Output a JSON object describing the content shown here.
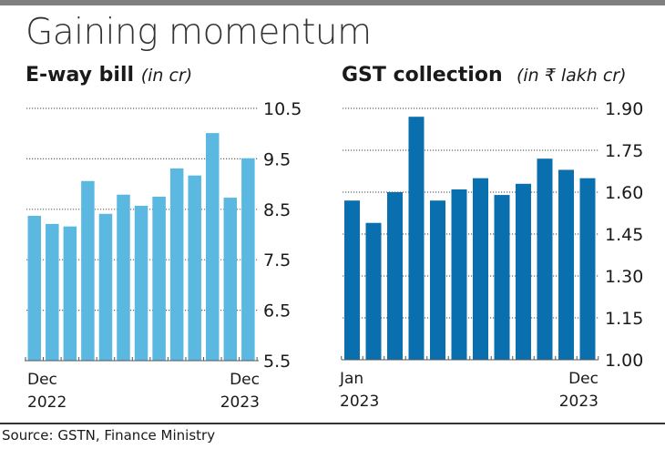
{
  "title": "Gaining momentum",
  "source": "Source: GSTN, Finance Ministry",
  "colors": {
    "eway": "#5bb8e1",
    "gst": "#0a6fae",
    "grid": "#666666",
    "topbar": "#808080"
  },
  "chart_data": [
    {
      "type": "bar",
      "title": "E-way bill",
      "unit": "(in cr)",
      "categories": [
        "Dec 2022",
        "Jan 2023",
        "Feb 2023",
        "Mar 2023",
        "Apr 2023",
        "May 2023",
        "Jun 2023",
        "Jul 2023",
        "Aug 2023",
        "Sep 2023",
        "Oct 2023",
        "Nov 2023",
        "Dec 2023"
      ],
      "values": [
        8.37,
        8.21,
        8.16,
        9.06,
        8.41,
        8.79,
        8.57,
        8.75,
        9.31,
        9.17,
        10.01,
        8.73,
        9.51
      ],
      "ylim": [
        5.5,
        10.5
      ],
      "yticks": [
        "10.5",
        "9.5",
        "8.5",
        "7.5",
        "6.5",
        "5.5"
      ],
      "ytick_values": [
        10.5,
        9.5,
        8.5,
        7.5,
        6.5,
        5.5
      ],
      "xlabels": {
        "start": [
          "Dec",
          "2022"
        ],
        "end": [
          "Dec",
          "2023"
        ]
      },
      "grid": true
    },
    {
      "type": "bar",
      "title": "GST collection",
      "unit": "(in ₹ lakh cr)",
      "categories": [
        "Jan 2023",
        "Feb 2023",
        "Mar 2023",
        "Apr 2023",
        "May 2023",
        "Jun 2023",
        "Jul 2023",
        "Aug 2023",
        "Sep 2023",
        "Oct 2023",
        "Nov 2023",
        "Dec 2023"
      ],
      "values": [
        1.57,
        1.49,
        1.6,
        1.87,
        1.57,
        1.61,
        1.65,
        1.59,
        1.63,
        1.72,
        1.68,
        1.65
      ],
      "ylim": [
        1.0,
        1.9
      ],
      "yticks": [
        "1.90",
        "1.75",
        "1.60",
        "1.45",
        "1.30",
        "1.15",
        "1.00"
      ],
      "ytick_values": [
        1.9,
        1.75,
        1.6,
        1.45,
        1.3,
        1.15,
        1.0
      ],
      "xlabels": {
        "start": [
          "Jan",
          "2023"
        ],
        "end": [
          "Dec",
          "2023"
        ]
      },
      "grid": true
    }
  ]
}
